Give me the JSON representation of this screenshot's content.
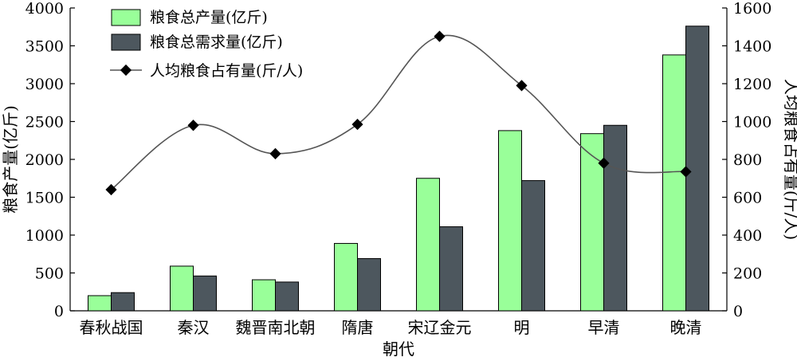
{
  "chart_data": {
    "type": "bar",
    "categories": [
      "春秋战国",
      "秦汉",
      "魏晋南北朝",
      "隋唐",
      "宋辽金元",
      "明",
      "早清",
      "晚清"
    ],
    "series": [
      {
        "name": "粮食总产量(亿斤)",
        "type": "bar",
        "axis": "left",
        "color": "#99ff99",
        "values": [
          200,
          590,
          410,
          890,
          1750,
          2380,
          2340,
          3380
        ]
      },
      {
        "name": "粮食总需求量(亿斤)",
        "type": "bar",
        "axis": "left",
        "color": "#4d575e",
        "values": [
          240,
          460,
          380,
          690,
          1110,
          1720,
          2450,
          3760
        ]
      },
      {
        "name": "人均粮食占有量(斤/人)",
        "type": "line",
        "axis": "right",
        "color": "#555555",
        "values": [
          640,
          980,
          830,
          985,
          1450,
          1190,
          780,
          735
        ]
      }
    ],
    "xlabel": "朝代",
    "ylabel": "粮食产量(亿斤)",
    "y2label": "人均粮食占有量(斤/人)",
    "ylim": [
      0,
      4000
    ],
    "y2lim": [
      0,
      1600
    ],
    "yticks": [
      "0",
      "500",
      "1000",
      "1500",
      "2000",
      "2500",
      "3000",
      "3500",
      "4000"
    ],
    "y2ticks": [
      "0",
      "200",
      "400",
      "600",
      "800",
      "1000",
      "1200",
      "1400",
      "1600"
    ],
    "legend": "top-left",
    "grid": false
  }
}
